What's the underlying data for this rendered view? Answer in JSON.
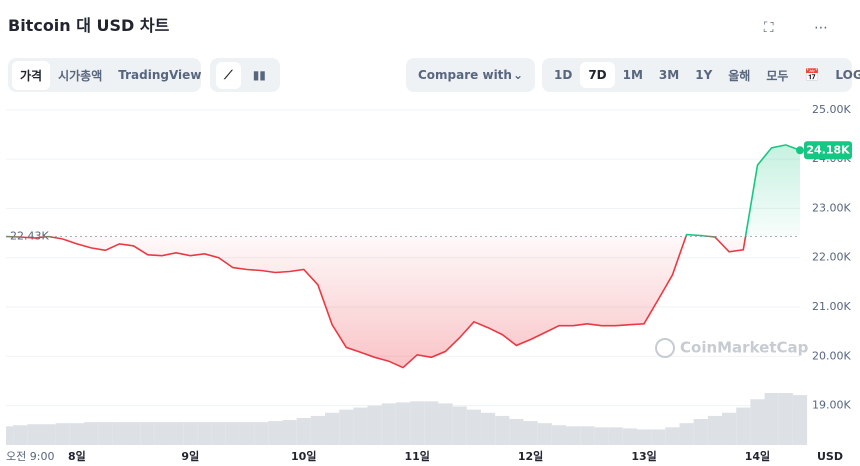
{
  "header": {
    "title": "Bitcoin 대 USD 차트"
  },
  "toolbar": {
    "tabs": [
      "가격",
      "시가총액",
      "TradingView"
    ],
    "active_tab": 0,
    "compare": "Compare with",
    "ranges": [
      "1D",
      "7D",
      "1M",
      "3M",
      "1Y",
      "올해",
      "모두"
    ],
    "active_range": 1,
    "log": "LOG"
  },
  "chart_data": {
    "type": "line",
    "categories": [
      "오전 9:00",
      null,
      null,
      null,
      null,
      "8일",
      null,
      null,
      null,
      null,
      null,
      null,
      null,
      "9일",
      null,
      null,
      null,
      null,
      null,
      null,
      null,
      "10일",
      null,
      null,
      null,
      null,
      null,
      null,
      null,
      "11일",
      null,
      null,
      null,
      null,
      null,
      null,
      null,
      "12일",
      null,
      null,
      null,
      null,
      null,
      null,
      null,
      "13일",
      null,
      null,
      null,
      null,
      null,
      null,
      null,
      "14일",
      null,
      null,
      null
    ],
    "values": [
      22.43,
      22.42,
      22.4,
      22.43,
      22.38,
      22.28,
      22.2,
      22.15,
      22.28,
      22.24,
      22.06,
      22.04,
      22.1,
      22.04,
      22.08,
      22.0,
      21.8,
      21.76,
      21.74,
      21.7,
      21.72,
      21.76,
      21.45,
      20.64,
      20.18,
      20.08,
      19.98,
      19.9,
      19.77,
      20.03,
      19.98,
      20.1,
      20.38,
      20.7,
      20.58,
      20.44,
      20.22,
      20.34,
      20.48,
      20.62,
      20.62,
      20.66,
      20.62,
      20.62,
      20.64,
      20.66,
      21.15,
      21.65,
      22.47,
      22.45,
      22.42,
      22.12,
      22.16,
      23.88,
      24.23,
      24.29,
      24.18
    ],
    "value_labels": [
      null,
      null,
      null,
      null,
      null,
      null,
      null,
      null,
      null,
      null,
      null,
      null,
      null,
      null,
      null,
      null,
      null,
      null,
      null,
      null,
      null,
      null,
      null,
      null,
      null,
      null,
      null,
      null,
      null,
      null,
      null,
      null,
      null,
      null,
      null,
      null,
      null,
      null,
      null,
      null,
      null,
      null,
      null,
      null,
      null,
      null,
      null,
      null,
      null,
      null,
      null,
      null,
      null,
      null,
      null,
      null,
      "24.18K"
    ],
    "volume": [
      18,
      19,
      20,
      20,
      21,
      21,
      22,
      22,
      22,
      22,
      22,
      22,
      22,
      22,
      22,
      22,
      22,
      22,
      22,
      23,
      24,
      26,
      28,
      31,
      34,
      36,
      38,
      40,
      41,
      42,
      42,
      40,
      37,
      34,
      31,
      28,
      25,
      23,
      21,
      19,
      18,
      18,
      17,
      17,
      16,
      15,
      15,
      17,
      21,
      25,
      28,
      31,
      36,
      44,
      50,
      50,
      48
    ],
    "ylim": [
      18.2,
      25.2
    ],
    "yticks": [
      {
        "value": 19,
        "label": "19.00K"
      },
      {
        "value": 20,
        "label": "20.00K"
      },
      {
        "value": 21,
        "label": "21.00K"
      },
      {
        "value": 22,
        "label": "22.00K"
      },
      {
        "value": 23,
        "label": "23.00K"
      },
      {
        "value": 24,
        "label": "24.00K"
      },
      {
        "value": 25,
        "label": "25.00K"
      }
    ],
    "baseline": {
      "value": 22.43,
      "label": "22.43K"
    },
    "up_color": "#16c784",
    "down_color": "#ea3943",
    "volume_color": "#dde1e6",
    "grid": true,
    "watermark": "CoinMarketCap",
    "unit": "USD"
  }
}
